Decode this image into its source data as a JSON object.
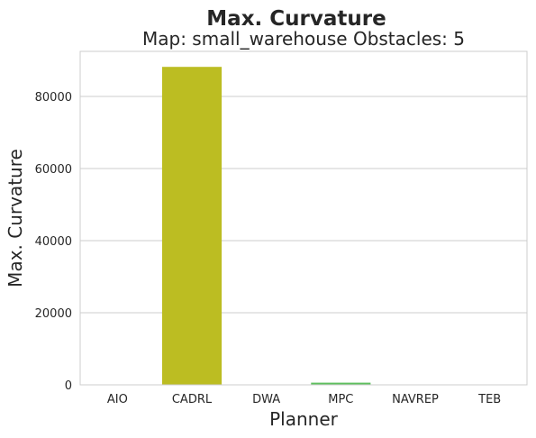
{
  "chart_data": {
    "type": "bar",
    "title": "Max. Curvature",
    "subtitle": "Map: small_warehouse Obstacles: 5",
    "xlabel": "Planner",
    "ylabel": "Max. Curvature",
    "categories": [
      "AIO",
      "CADRL",
      "DWA",
      "MPC",
      "NAVREP",
      "TEB"
    ],
    "values": [
      0,
      88200,
      0,
      600,
      0,
      0
    ],
    "colors": [
      "#1f77b4",
      "#bcbd22",
      "#9467bd",
      "#5ebf5e",
      "#d62728",
      "#17becf"
    ],
    "ylim": [
      0,
      92500
    ],
    "yticks": [
      0,
      20000,
      40000,
      60000,
      80000
    ],
    "ytick_labels": [
      "0",
      "20000",
      "40000",
      "60000",
      "80000"
    ],
    "grid": true,
    "legend": "none"
  }
}
